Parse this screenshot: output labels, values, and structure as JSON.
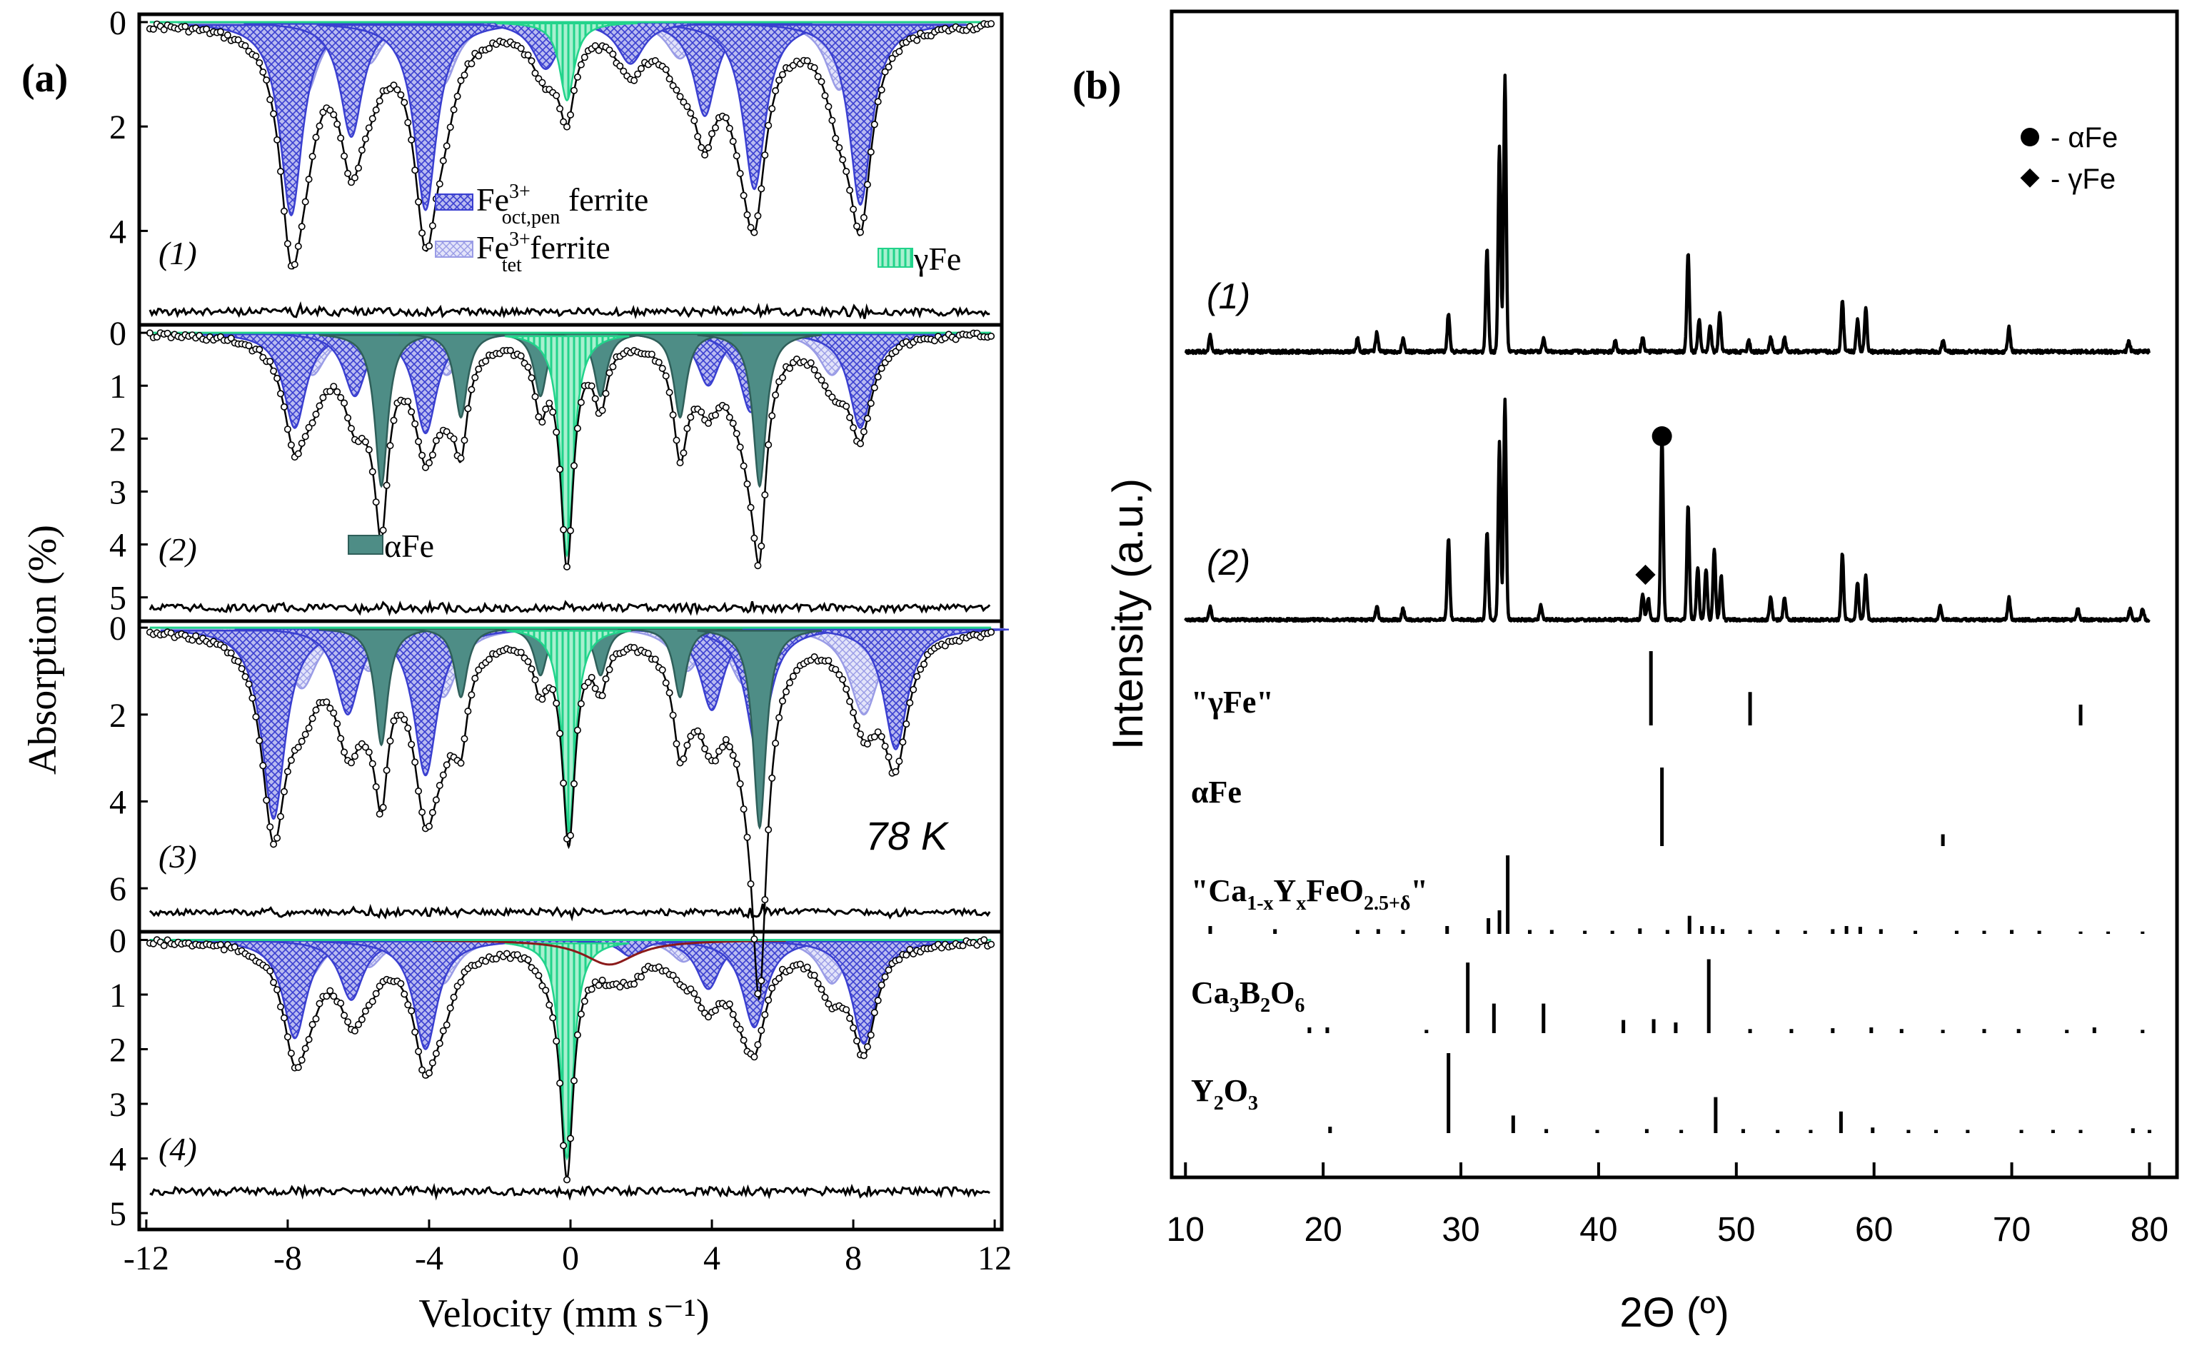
{
  "chart_data": [
    {
      "panel": "(a)",
      "type": "line",
      "title": "",
      "xlabel": "Velocity (mm s⁻¹)",
      "ylabel": "Absorption (%)",
      "xlim": [
        -12.2,
        12.2
      ],
      "xticks": [
        -12,
        -8,
        -4,
        0,
        4,
        8,
        12
      ],
      "xtick_labels": [
        "-12",
        "-8",
        "-4",
        "0",
        "4",
        "8",
        "12"
      ],
      "temperature_label": "78 K",
      "legend": {
        "oct": {
          "prefix": "Fe",
          "sup": "3+",
          "sub": "oct,pen",
          "suffix": " ferrite",
          "color": "#3a3fd0"
        },
        "tet": {
          "prefix": "Fe",
          "sup": "3+",
          "sub": "tet",
          "suffix": " ferrite",
          "color": "#8f91e3"
        },
        "gamma": {
          "label": "γFe",
          "color": "#22d38b"
        },
        "alpha": {
          "label": "αFe",
          "color": "#4e8d86"
        }
      },
      "colors": {
        "fit": "#000000",
        "data": "#000000",
        "oct": "#3a3fd0",
        "tet": "#9a9ce6",
        "gamma": "#22d38b",
        "alpha": "#4e8d86",
        "extra": "#8b1a1a"
      },
      "spectra": [
        {
          "label": "(1)",
          "ylim": [
            -0.15,
            5.8
          ],
          "yticks": [
            0,
            2,
            4
          ],
          "ytick_labels": [
            "0",
            "2",
            "4"
          ],
          "residual_level": 5.55,
          "sextets": [
            {
              "kind": "oct",
              "lines": [
                -7.9,
                -6.2,
                -4.1,
                3.8,
                5.2,
                8.2
              ],
              "depths": [
                3.7,
                2.2,
                3.6,
                1.8,
                3.2,
                3.5
              ],
              "width": 0.38
            },
            {
              "kind": "tet",
              "lines": [
                -7.5,
                -5.7,
                -3.6,
                3.1,
                4.8,
                7.6
              ],
              "depths": [
                1.4,
                0.8,
                1.2,
                0.7,
                1.0,
                1.3
              ],
              "width": 0.45
            },
            {
              "kind": "oct",
              "lines": [
                -0.7,
                1.7
              ],
              "depths": [
                0.9,
                0.8
              ],
              "width": 0.45
            }
          ],
          "singlets": [
            {
              "kind": "gamma",
              "pos": -0.1,
              "depth": 1.5,
              "width": 0.25
            }
          ],
          "extra": []
        },
        {
          "label": "(2)",
          "ylim": [
            -0.15,
            5.45
          ],
          "yticks": [
            0,
            1,
            2,
            3,
            4,
            5
          ],
          "ytick_labels": [
            "0",
            "1",
            "2",
            "3",
            "4",
            "5"
          ],
          "residual_level": 5.2,
          "sextets": [
            {
              "kind": "oct",
              "lines": [
                -7.8,
                -6.1,
                -4.1,
                3.9,
                5.1,
                8.2
              ],
              "depths": [
                1.8,
                1.2,
                1.9,
                1.0,
                1.5,
                1.8
              ],
              "width": 0.38
            },
            {
              "kind": "tet",
              "lines": [
                -7.3,
                -5.6,
                -3.5,
                3.2,
                4.7,
                7.4
              ],
              "depths": [
                0.8,
                0.6,
                0.8,
                0.5,
                0.6,
                0.8
              ],
              "width": 0.45
            },
            {
              "kind": "alpha",
              "lines": [
                -5.35,
                -3.1,
                -0.85,
                0.85,
                3.1,
                5.35
              ],
              "depths": [
                2.9,
                1.6,
                1.2,
                1.2,
                1.6,
                2.9
              ],
              "width": 0.22
            }
          ],
          "singlets": [
            {
              "kind": "gamma",
              "pos": -0.1,
              "depth": 4.2,
              "width": 0.22
            }
          ],
          "extra": []
        },
        {
          "label": "(3)",
          "ylim": [
            -0.15,
            7.0
          ],
          "yticks": [
            0,
            2,
            4,
            6
          ],
          "ytick_labels": [
            "0",
            "2",
            "4",
            "6"
          ],
          "residual_level": 6.55,
          "sextets": [
            {
              "kind": "oct",
              "lines": [
                -8.4,
                -6.3,
                -4.1,
                4.0,
                5.3,
                9.2
              ],
              "depths": [
                4.4,
                2.0,
                3.4,
                1.9,
                2.9,
                2.8
              ],
              "width": 0.4
            },
            {
              "kind": "tet",
              "lines": [
                -7.6,
                -5.7,
                -3.6,
                3.3,
                4.9,
                8.3
              ],
              "depths": [
                1.4,
                1.0,
                1.6,
                1.0,
                1.3,
                2.0
              ],
              "width": 0.5
            },
            {
              "kind": "alpha",
              "lines": [
                -5.35,
                -3.1,
                -0.85,
                0.85,
                3.1,
                5.35
              ],
              "depths": [
                2.7,
                1.6,
                1.1,
                1.1,
                1.6,
                4.6
              ],
              "width": 0.22
            }
          ],
          "singlets": [
            {
              "kind": "gamma",
              "pos": -0.05,
              "depth": 4.7,
              "width": 0.22
            }
          ],
          "extra": []
        },
        {
          "label": "(4)",
          "ylim": [
            -0.15,
            5.3
          ],
          "yticks": [
            0,
            1,
            2,
            3,
            4,
            5
          ],
          "ytick_labels": [
            "0",
            "1",
            "2",
            "3",
            "4",
            "5"
          ],
          "residual_level": 4.6,
          "sextets": [
            {
              "kind": "oct",
              "lines": [
                -7.8,
                -6.2,
                -4.1,
                3.9,
                5.2,
                8.3
              ],
              "depths": [
                1.8,
                1.1,
                2.0,
                0.9,
                1.6,
                1.9
              ],
              "width": 0.4
            },
            {
              "kind": "tet",
              "lines": [
                -7.4,
                -5.7,
                -3.6,
                3.2,
                4.8,
                7.4
              ],
              "depths": [
                0.7,
                0.5,
                0.8,
                0.4,
                0.6,
                0.8
              ],
              "width": 0.45
            },
            {
              "kind": "oct",
              "lines": [
                -0.6,
                1.7
              ],
              "depths": [
                0.3,
                0.3
              ],
              "width": 0.4
            }
          ],
          "singlets": [
            {
              "kind": "gamma",
              "pos": -0.1,
              "depth": 4.0,
              "width": 0.22
            }
          ],
          "extra": [
            {
              "pos": 1.1,
              "depth": 0.45,
              "width": 0.9
            }
          ]
        }
      ]
    },
    {
      "panel": "(b)",
      "type": "line",
      "title": "",
      "xlabel": "2Θ (º)",
      "ylabel": "Intensity (a.u.)",
      "xlim": [
        9,
        82
      ],
      "xticks": [
        10,
        20,
        30,
        40,
        50,
        60,
        70,
        80
      ],
      "xtick_labels": [
        "10",
        "20",
        "30",
        "40",
        "50",
        "60",
        "70",
        "80"
      ],
      "legend": [
        {
          "marker": "circle",
          "label": "- αFe"
        },
        {
          "marker": "diamond",
          "label": "- γFe"
        }
      ],
      "patterns": [
        {
          "label": "(1)",
          "peaks": [
            [
              11.8,
              0.06
            ],
            [
              22.5,
              0.05
            ],
            [
              23.9,
              0.07
            ],
            [
              25.8,
              0.05
            ],
            [
              29.1,
              0.14
            ],
            [
              31.9,
              0.38
            ],
            [
              32.8,
              0.75
            ],
            [
              33.2,
              1.0
            ],
            [
              36.0,
              0.05
            ],
            [
              41.2,
              0.04
            ],
            [
              43.2,
              0.05
            ],
            [
              46.5,
              0.36
            ],
            [
              47.3,
              0.12
            ],
            [
              48.1,
              0.1
            ],
            [
              48.8,
              0.14
            ],
            [
              50.9,
              0.04
            ],
            [
              52.5,
              0.05
            ],
            [
              53.5,
              0.05
            ],
            [
              57.7,
              0.19
            ],
            [
              58.8,
              0.12
            ],
            [
              59.4,
              0.16
            ],
            [
              65.0,
              0.04
            ],
            [
              69.8,
              0.09
            ],
            [
              78.5,
              0.04
            ]
          ]
        },
        {
          "label": "(2)",
          "peaks": [
            [
              11.8,
              0.06
            ],
            [
              23.9,
              0.06
            ],
            [
              25.8,
              0.05
            ],
            [
              29.1,
              0.37
            ],
            [
              31.9,
              0.4
            ],
            [
              32.8,
              0.8
            ],
            [
              33.2,
              1.0
            ],
            [
              35.8,
              0.07
            ],
            [
              43.2,
              0.12
            ],
            [
              43.6,
              0.1
            ],
            [
              44.6,
              0.84
            ],
            [
              46.5,
              0.52
            ],
            [
              47.2,
              0.24
            ],
            [
              47.8,
              0.23
            ],
            [
              48.4,
              0.32
            ],
            [
              48.9,
              0.2
            ],
            [
              52.5,
              0.1
            ],
            [
              53.5,
              0.1
            ],
            [
              57.7,
              0.3
            ],
            [
              58.8,
              0.17
            ],
            [
              59.4,
              0.2
            ],
            [
              64.8,
              0.06
            ],
            [
              69.8,
              0.1
            ],
            [
              74.8,
              0.05
            ],
            [
              78.6,
              0.05
            ],
            [
              79.5,
              0.05
            ]
          ],
          "markers": [
            {
              "marker": "circle",
              "x": 44.6
            },
            {
              "marker": "diamond",
              "x": 43.4
            }
          ]
        }
      ],
      "references": [
        {
          "name": "\"γFe\"",
          "lines": [
            [
              43.8,
              1.0
            ],
            [
              51.0,
              0.45
            ],
            [
              75.0,
              0.28
            ]
          ]
        },
        {
          "name": "αFe",
          "lines": [
            [
              44.6,
              1.0
            ],
            [
              65.0,
              0.15
            ]
          ]
        },
        {
          "name": "\"Ca1-xYxFeO2.5+δ\"",
          "name_parts": [
            "\"Ca",
            "1-x",
            "Y",
            "x",
            "FeO",
            "2.5+δ",
            "\""
          ],
          "lines": [
            [
              11.8,
              0.1
            ],
            [
              16.5,
              0.06
            ],
            [
              22.5,
              0.05
            ],
            [
              24.0,
              0.06
            ],
            [
              25.8,
              0.05
            ],
            [
              29.0,
              0.1
            ],
            [
              32.0,
              0.2
            ],
            [
              32.8,
              0.3
            ],
            [
              33.4,
              1.0
            ],
            [
              35.0,
              0.05
            ],
            [
              36.6,
              0.05
            ],
            [
              39.0,
              0.04
            ],
            [
              41.0,
              0.04
            ],
            [
              43.0,
              0.07
            ],
            [
              45.0,
              0.05
            ],
            [
              46.6,
              0.23
            ],
            [
              47.5,
              0.1
            ],
            [
              48.3,
              0.1
            ],
            [
              49.0,
              0.06
            ],
            [
              51.0,
              0.05
            ],
            [
              53.0,
              0.05
            ],
            [
              55.0,
              0.04
            ],
            [
              57.0,
              0.06
            ],
            [
              58.0,
              0.1
            ],
            [
              59.0,
              0.09
            ],
            [
              60.5,
              0.06
            ],
            [
              63.0,
              0.04
            ],
            [
              66.0,
              0.04
            ],
            [
              68.0,
              0.04
            ],
            [
              70.0,
              0.05
            ],
            [
              72.0,
              0.04
            ],
            [
              75.0,
              0.03
            ],
            [
              77.0,
              0.03
            ],
            [
              79.5,
              0.03
            ]
          ]
        },
        {
          "name": "Ca3B2O6",
          "name_parts": [
            "Ca",
            "3",
            "B",
            "2",
            "O",
            "6"
          ],
          "lines": [
            [
              19.0,
              0.07
            ],
            [
              20.3,
              0.07
            ],
            [
              27.5,
              0.04
            ],
            [
              30.5,
              0.86
            ],
            [
              32.4,
              0.36
            ],
            [
              36.0,
              0.36
            ],
            [
              41.8,
              0.16
            ],
            [
              44.0,
              0.17
            ],
            [
              45.6,
              0.13
            ],
            [
              48.0,
              0.9
            ],
            [
              51.0,
              0.05
            ],
            [
              54.0,
              0.05
            ],
            [
              57.0,
              0.06
            ],
            [
              59.8,
              0.07
            ],
            [
              62.0,
              0.05
            ],
            [
              65.0,
              0.04
            ],
            [
              68.0,
              0.05
            ],
            [
              70.5,
              0.05
            ],
            [
              74.0,
              0.04
            ],
            [
              76.0,
              0.07
            ],
            [
              79.5,
              0.04
            ]
          ]
        },
        {
          "name": "Y2O3",
          "name_parts": [
            "Y",
            "2",
            "O",
            "3"
          ],
          "lines": [
            [
              20.5,
              0.08
            ],
            [
              29.1,
              1.0
            ],
            [
              33.8,
              0.22
            ],
            [
              36.2,
              0.05
            ],
            [
              39.9,
              0.04
            ],
            [
              43.5,
              0.05
            ],
            [
              46.0,
              0.04
            ],
            [
              48.5,
              0.45
            ],
            [
              50.5,
              0.05
            ],
            [
              53.0,
              0.04
            ],
            [
              55.4,
              0.04
            ],
            [
              57.6,
              0.27
            ],
            [
              59.9,
              0.07
            ],
            [
              62.5,
              0.04
            ],
            [
              64.5,
              0.04
            ],
            [
              66.8,
              0.04
            ],
            [
              70.7,
              0.04
            ],
            [
              73.0,
              0.04
            ],
            [
              75.0,
              0.04
            ],
            [
              78.8,
              0.06
            ],
            [
              80.0,
              0.04
            ]
          ]
        }
      ]
    }
  ]
}
